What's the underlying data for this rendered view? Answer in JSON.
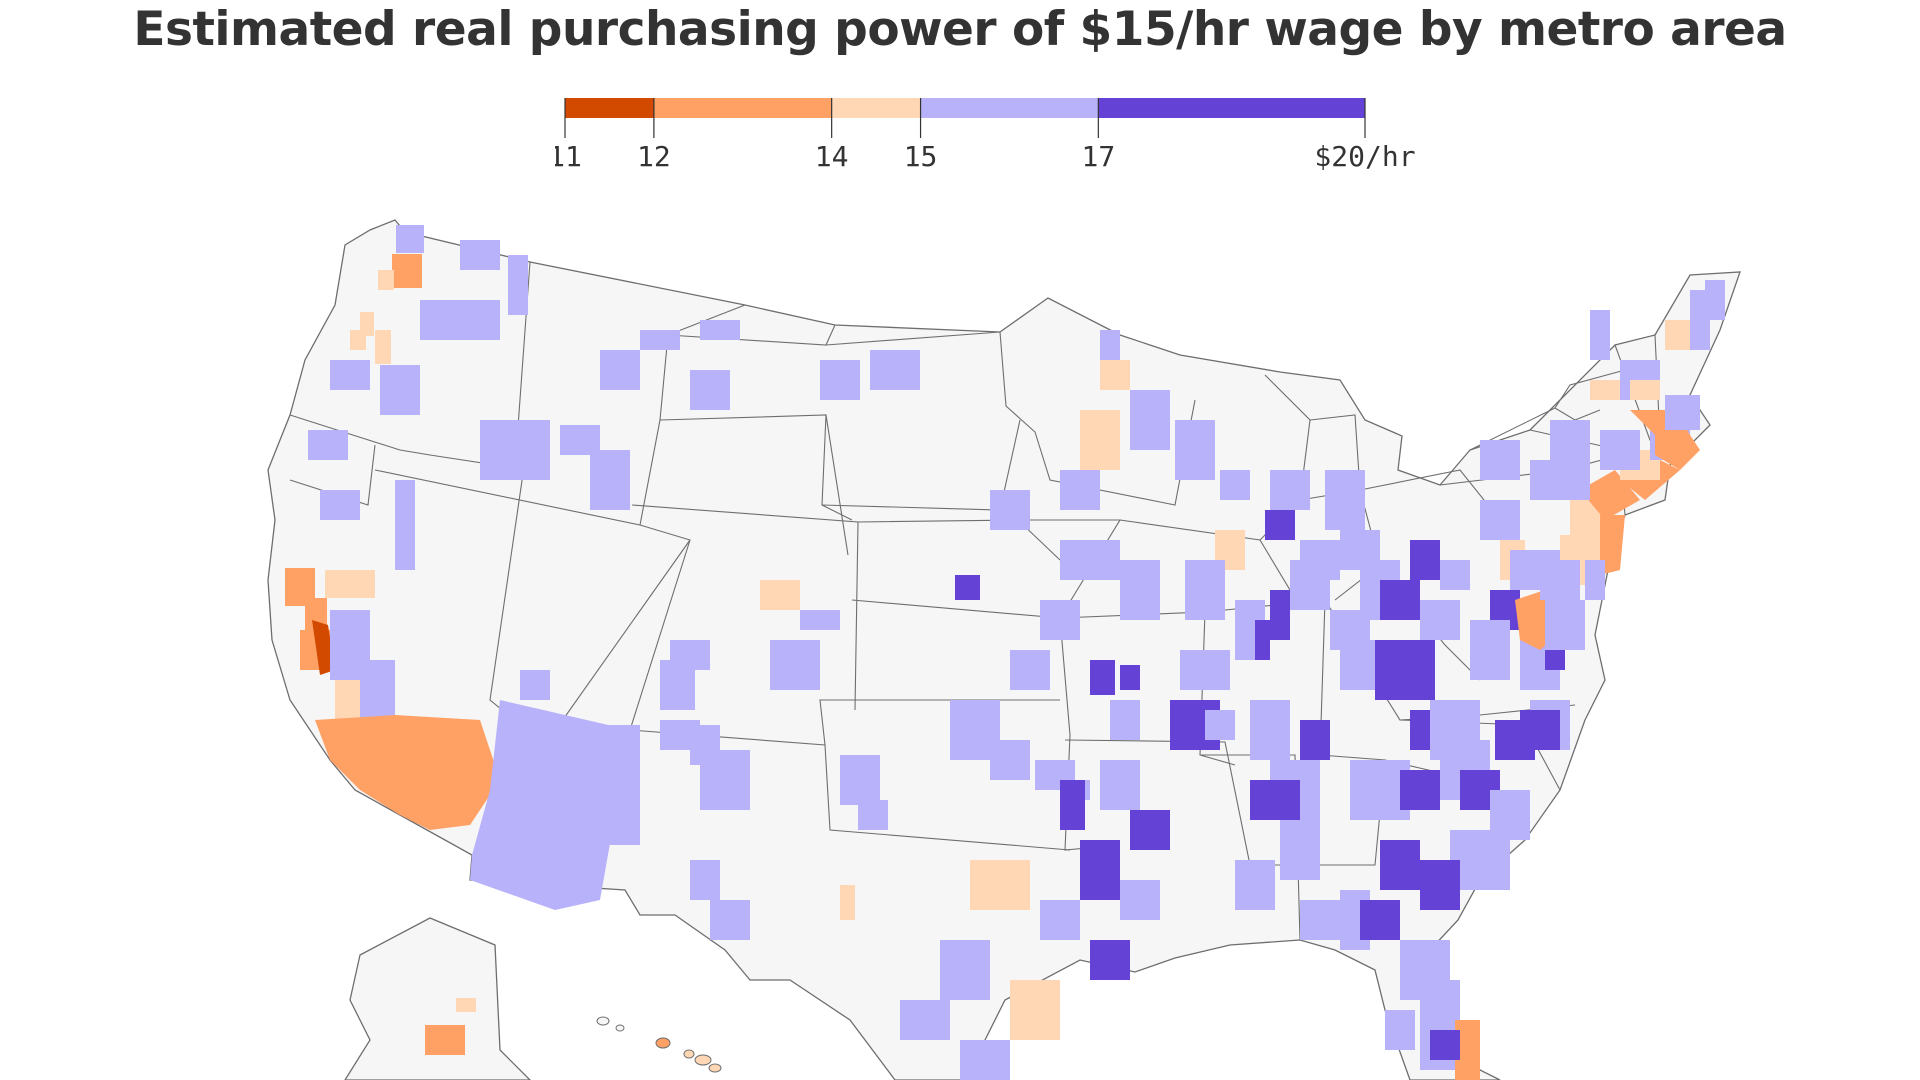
{
  "title": "Estimated real purchasing power of $15/hr wage by metro area",
  "legend": {
    "ticks": [
      "11",
      "12",
      "14",
      "15",
      "17",
      "$20/hr"
    ],
    "tick_values": [
      11,
      12,
      14,
      15,
      17,
      20
    ],
    "bins": [
      {
        "from": 11,
        "to": 12,
        "color": "#d14a00"
      },
      {
        "from": 12,
        "to": 14,
        "color": "#ffa065"
      },
      {
        "from": 14,
        "to": 15,
        "color": "#ffd7b5"
      },
      {
        "from": 15,
        "to": 17,
        "color": "#b8b2fa"
      },
      {
        "from": 17,
        "to": 20,
        "color": "#6442d6"
      }
    ]
  },
  "colors": {
    "state_fill": "#f6f6f6",
    "state_border": "#6e6e6e",
    "text": "#333333"
  }
}
